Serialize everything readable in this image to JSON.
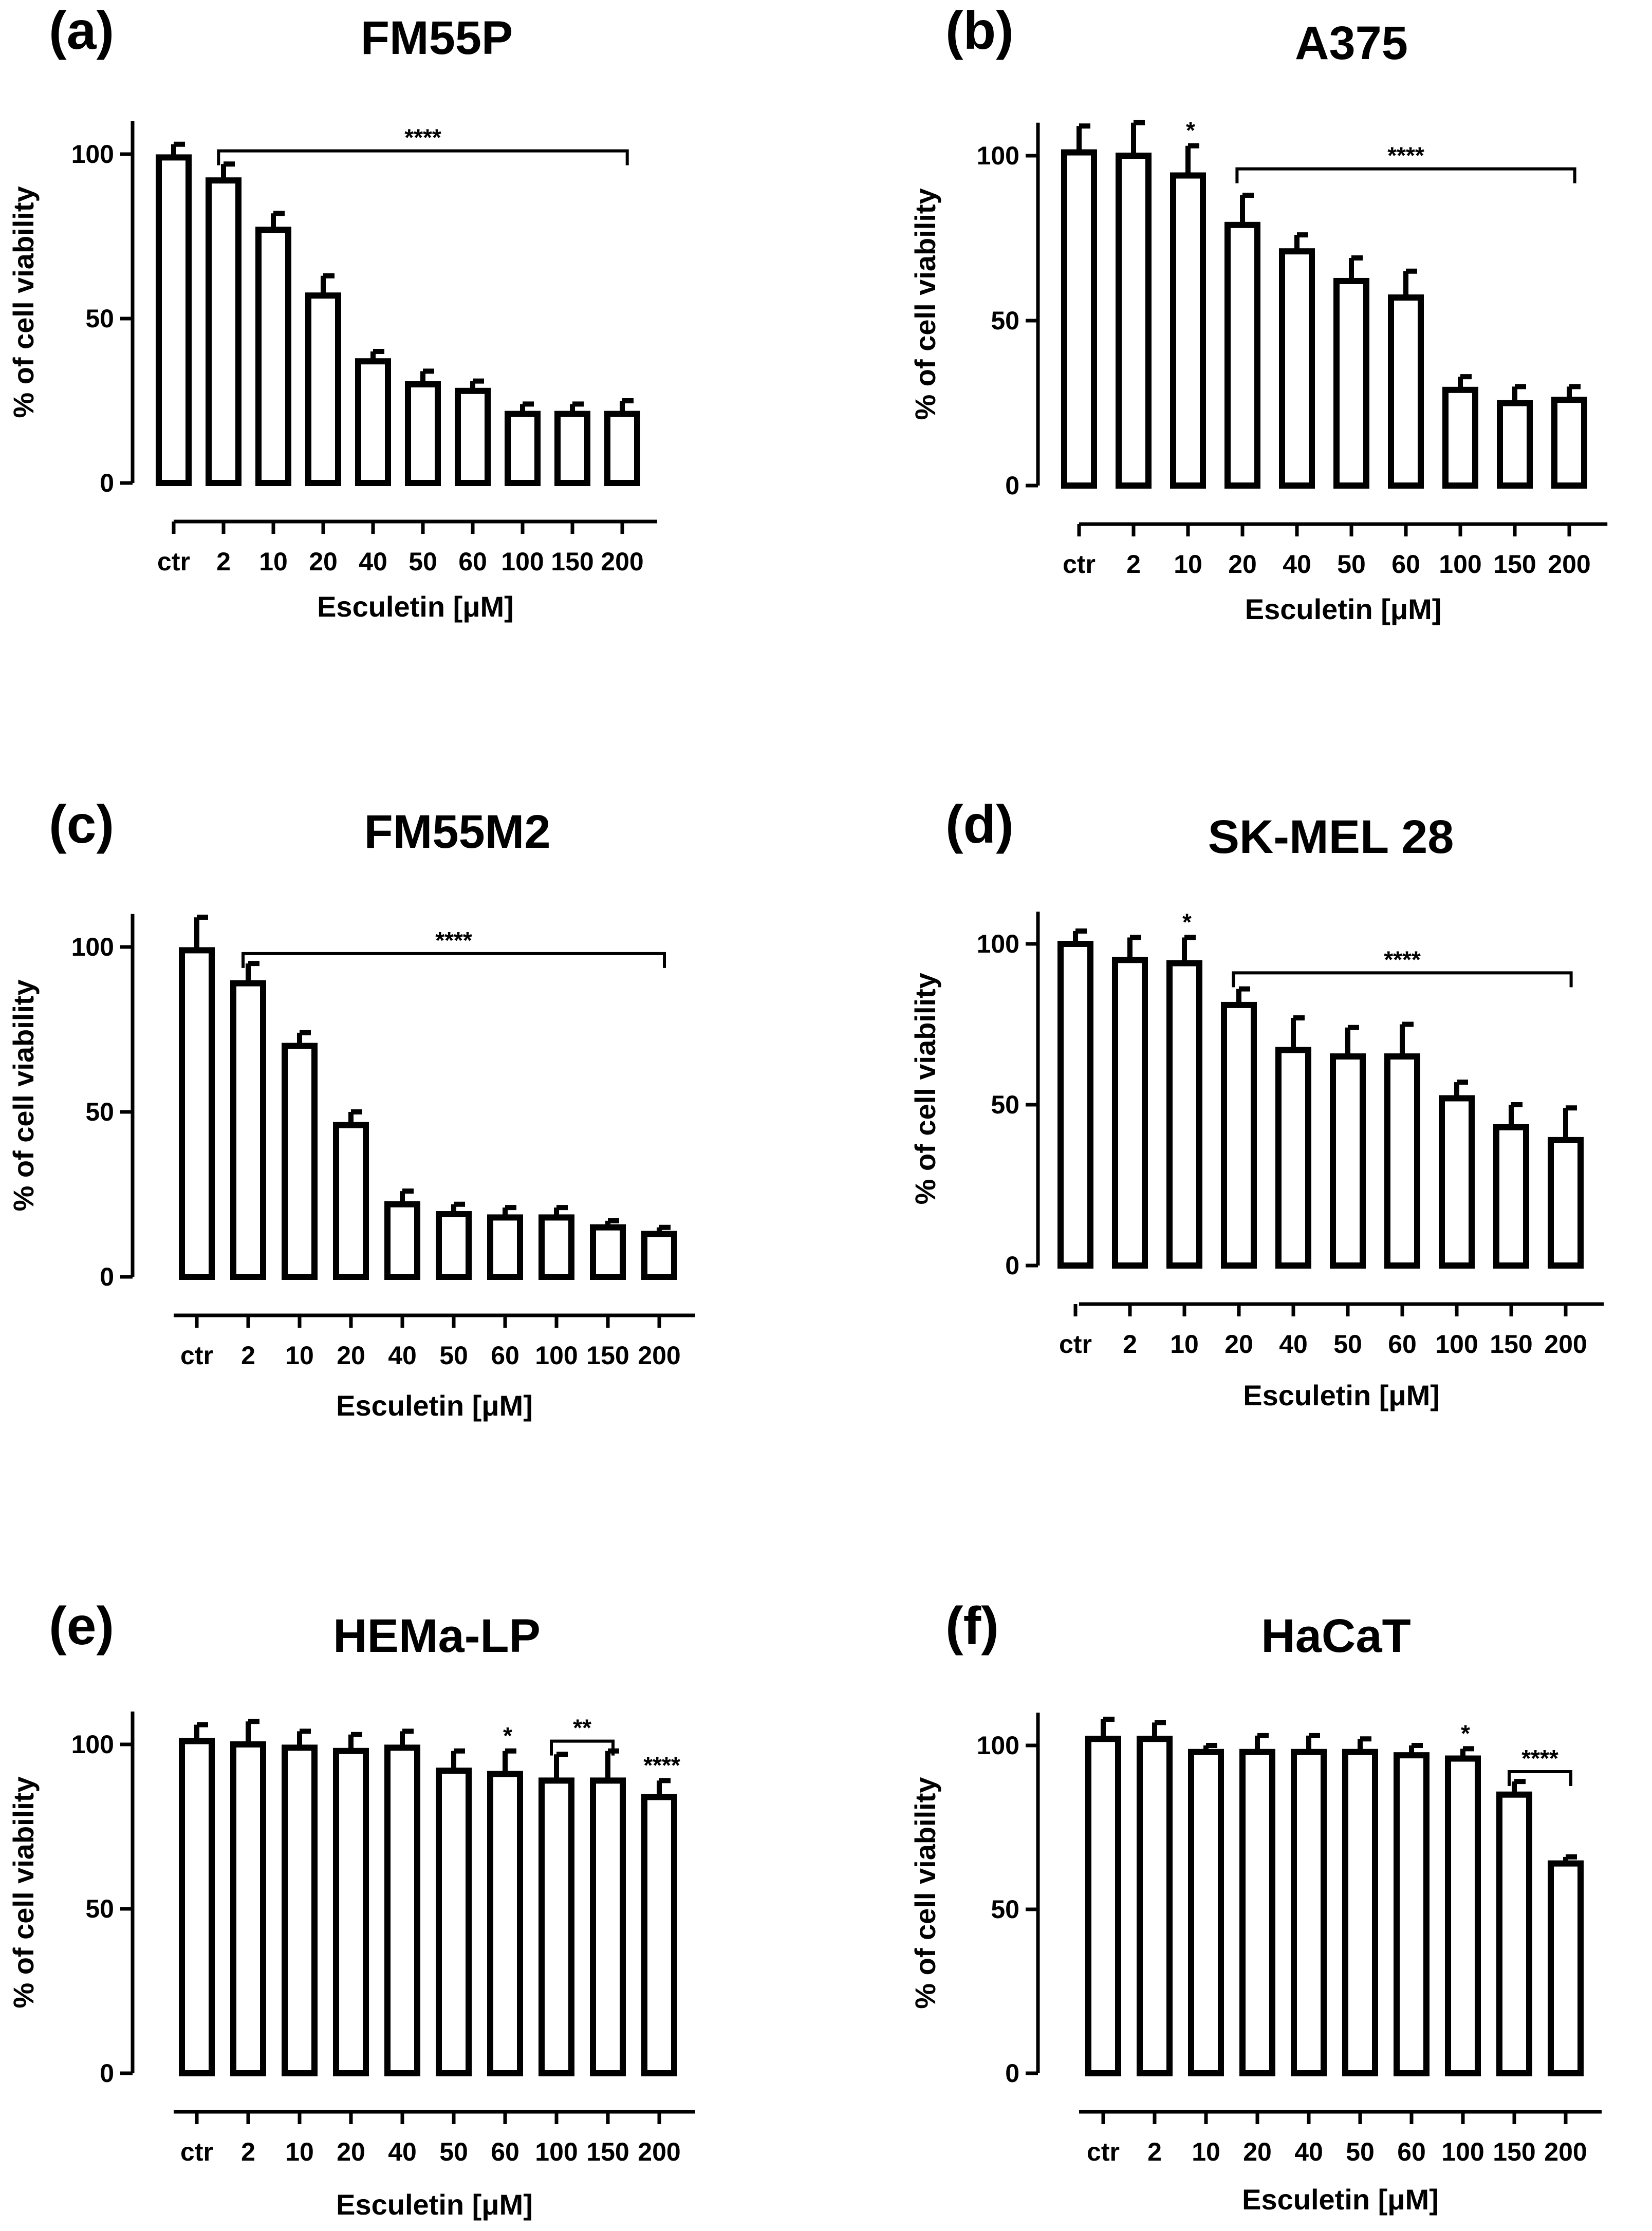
{
  "figure": "Esculetin cell viability panels",
  "chart_data": [
    {
      "type": "bar",
      "panel": "(a)",
      "title": "FM55P",
      "xlabel": "Esculetin [μM]",
      "ylabel": "% of cell viability",
      "categories": [
        "ctr",
        "2",
        "10",
        "20",
        "40",
        "50",
        "60",
        "100",
        "150",
        "200"
      ],
      "values": [
        99,
        92,
        77,
        57,
        37,
        30,
        28,
        21,
        21,
        21
      ],
      "errors": [
        4,
        5,
        5,
        6,
        3,
        4,
        3,
        3,
        3,
        4
      ],
      "ylim": [
        0,
        110
      ],
      "yticks": [
        0,
        50,
        100
      ],
      "annotations": [
        {
          "label": "****",
          "kind": "bracket",
          "from": 1,
          "to": 9,
          "y": 101
        }
      ]
    },
    {
      "type": "bar",
      "panel": "(b)",
      "title": "A375",
      "xlabel": "Esculetin [μM]",
      "ylabel": "% of cell viability",
      "categories": [
        "ctr",
        "2",
        "10",
        "20",
        "40",
        "50",
        "60",
        "100",
        "150",
        "200"
      ],
      "values": [
        101,
        100,
        94,
        79,
        71,
        62,
        57,
        29,
        25,
        26
      ],
      "errors": [
        8,
        10,
        9,
        9,
        5,
        7,
        8,
        4,
        5,
        4
      ],
      "ylim": [
        0,
        110
      ],
      "yticks": [
        0,
        50,
        100
      ],
      "annotations": [
        {
          "label": "*",
          "kind": "star",
          "at": 2
        },
        {
          "label": "****",
          "kind": "bracket",
          "from": 3,
          "to": 9,
          "y": 96
        }
      ]
    },
    {
      "type": "bar",
      "panel": "(c)",
      "title": "FM55M2",
      "xlabel": "Esculetin [μM]",
      "ylabel": "% of cell viability",
      "categories": [
        "ctr",
        "2",
        "10",
        "20",
        "40",
        "50",
        "60",
        "100",
        "150",
        "200"
      ],
      "values": [
        99,
        89,
        70,
        46,
        22,
        19,
        18,
        18,
        15,
        13
      ],
      "errors": [
        10,
        6,
        4,
        4,
        4,
        3,
        3,
        3,
        2,
        2
      ],
      "ylim": [
        0,
        110
      ],
      "yticks": [
        0,
        50,
        100
      ],
      "annotations": [
        {
          "label": "****",
          "kind": "bracket",
          "from": 1,
          "to": 9,
          "y": 98
        }
      ]
    },
    {
      "type": "bar",
      "panel": "(d)",
      "title": "SK-MEL 28",
      "xlabel": "Esculetin [μM]",
      "ylabel": "% of cell viability",
      "categories": [
        "ctr",
        "2",
        "10",
        "20",
        "40",
        "50",
        "60",
        "100",
        "150",
        "200"
      ],
      "values": [
        100,
        95,
        94,
        81,
        67,
        65,
        65,
        52,
        43,
        39
      ],
      "errors": [
        4,
        7,
        8,
        5,
        10,
        9,
        10,
        5,
        7,
        10
      ],
      "ylim": [
        0,
        110
      ],
      "yticks": [
        0,
        50,
        100
      ],
      "annotations": [
        {
          "label": "*",
          "kind": "star",
          "at": 2
        },
        {
          "label": "****",
          "kind": "bracket",
          "from": 3,
          "to": 9,
          "y": 91
        }
      ]
    },
    {
      "type": "bar",
      "panel": "(e)",
      "title": "HEMa-LP",
      "xlabel": "Esculetin [μM]",
      "ylabel": "% of cell viability",
      "categories": [
        "ctr",
        "2",
        "10",
        "20",
        "40",
        "50",
        "60",
        "100",
        "150",
        "200"
      ],
      "values": [
        101,
        100,
        99,
        98,
        99,
        92,
        91,
        89,
        89,
        84
      ],
      "errors": [
        5,
        7,
        5,
        5,
        5,
        6,
        7,
        8,
        9,
        5
      ],
      "ylim": [
        0,
        110
      ],
      "yticks": [
        0,
        50,
        100
      ],
      "annotations": [
        {
          "label": "*",
          "kind": "star",
          "at": 6
        },
        {
          "label": "**",
          "kind": "bracket",
          "from": 7,
          "to": 8,
          "y": 101
        },
        {
          "label": "****",
          "kind": "star",
          "at": 9
        }
      ]
    },
    {
      "type": "bar",
      "panel": "(f)",
      "title": "HaCaT",
      "xlabel": "Esculetin [μM]",
      "ylabel": "% of cell viability",
      "categories": [
        "ctr",
        "2",
        "10",
        "20",
        "40",
        "50",
        "60",
        "100",
        "150",
        "200"
      ],
      "values": [
        102,
        102,
        98,
        98,
        98,
        98,
        97,
        96,
        85,
        64
      ],
      "errors": [
        6,
        5,
        2,
        5,
        5,
        4,
        3,
        3,
        4,
        2
      ],
      "ylim": [
        0,
        110
      ],
      "yticks": [
        0,
        50,
        100
      ],
      "annotations": [
        {
          "label": "*",
          "kind": "star",
          "at": 7
        },
        {
          "label": "****",
          "kind": "bracket",
          "from": 8,
          "to": 9,
          "y": 92
        }
      ]
    }
  ]
}
